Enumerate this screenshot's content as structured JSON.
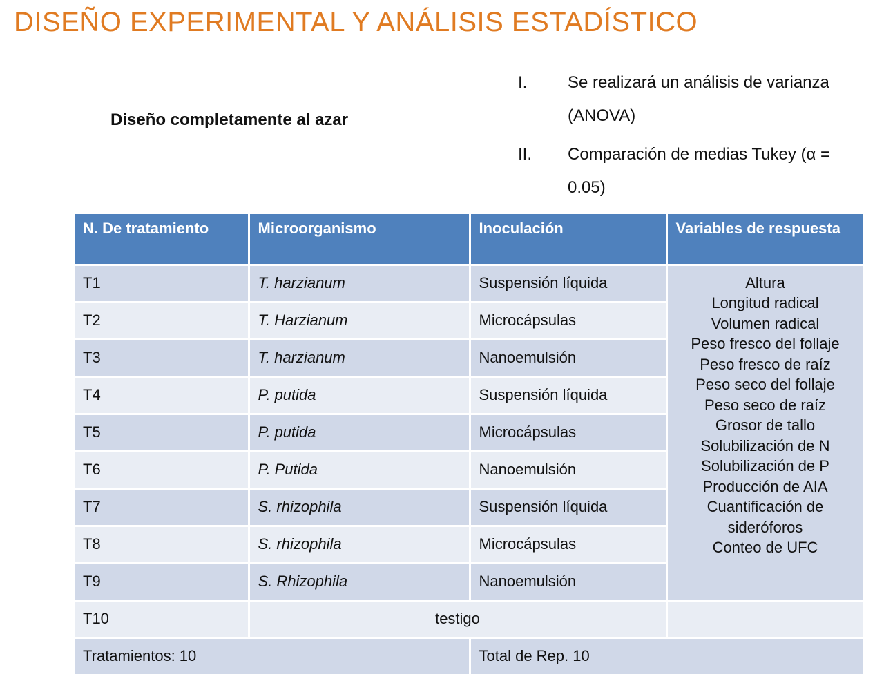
{
  "title": "DISEÑO EXPERIMENTAL Y ANÁLISIS ESTADÍSTICO",
  "subtitle": "Diseño completamente al azar",
  "analysis": [
    {
      "num": "I.",
      "text": "Se realizará un análisis de varianza (ANOVA)"
    },
    {
      "num": "II.",
      "text": "Comparación de medias Tukey (α = 0.05)"
    }
  ],
  "table": {
    "headers": [
      "N. De tratamiento",
      "Microorganismo",
      "Inoculación",
      "Variables de respuesta"
    ],
    "rows": [
      {
        "id": "T1",
        "micro": "T. harzianum",
        "inoc": "Suspensión líquida"
      },
      {
        "id": "T2",
        "micro": "T. Harzianum",
        "inoc": "Microcápsulas"
      },
      {
        "id": "T3",
        "micro": "T. harzianum",
        "inoc": "Nanoemulsión"
      },
      {
        "id": "T4",
        "micro": "P. putida",
        "inoc": "Suspensión líquida"
      },
      {
        "id": "T5",
        "micro": "P. putida",
        "inoc": "Microcápsulas"
      },
      {
        "id": "T6",
        "micro": "P. Putida",
        "inoc": "Nanoemulsión"
      },
      {
        "id": "T7",
        "micro": "S. rhizophila",
        "inoc": "Suspensión líquida"
      },
      {
        "id": "T8",
        "micro": "S. rhizophila",
        "inoc": "Microcápsulas"
      },
      {
        "id": "T9",
        "micro": "S. Rhizophila",
        "inoc": "Nanoemulsión"
      }
    ],
    "variables": [
      "Altura",
      "Longitud radical",
      "Volumen radical",
      "Peso fresco del follaje",
      "Peso fresco de raíz",
      "Peso seco del follaje",
      "Peso seco de raíz",
      "Grosor de tallo",
      "Solubilización de N",
      "Solubilización de P",
      "Producción de AIA",
      "Cuantificación de sideróforos",
      "Conteo de UFC"
    ],
    "control": {
      "id": "T10",
      "label": "testigo"
    },
    "footer": {
      "left": "Tratamientos: 10",
      "right": "Total de Rep. 10"
    }
  }
}
